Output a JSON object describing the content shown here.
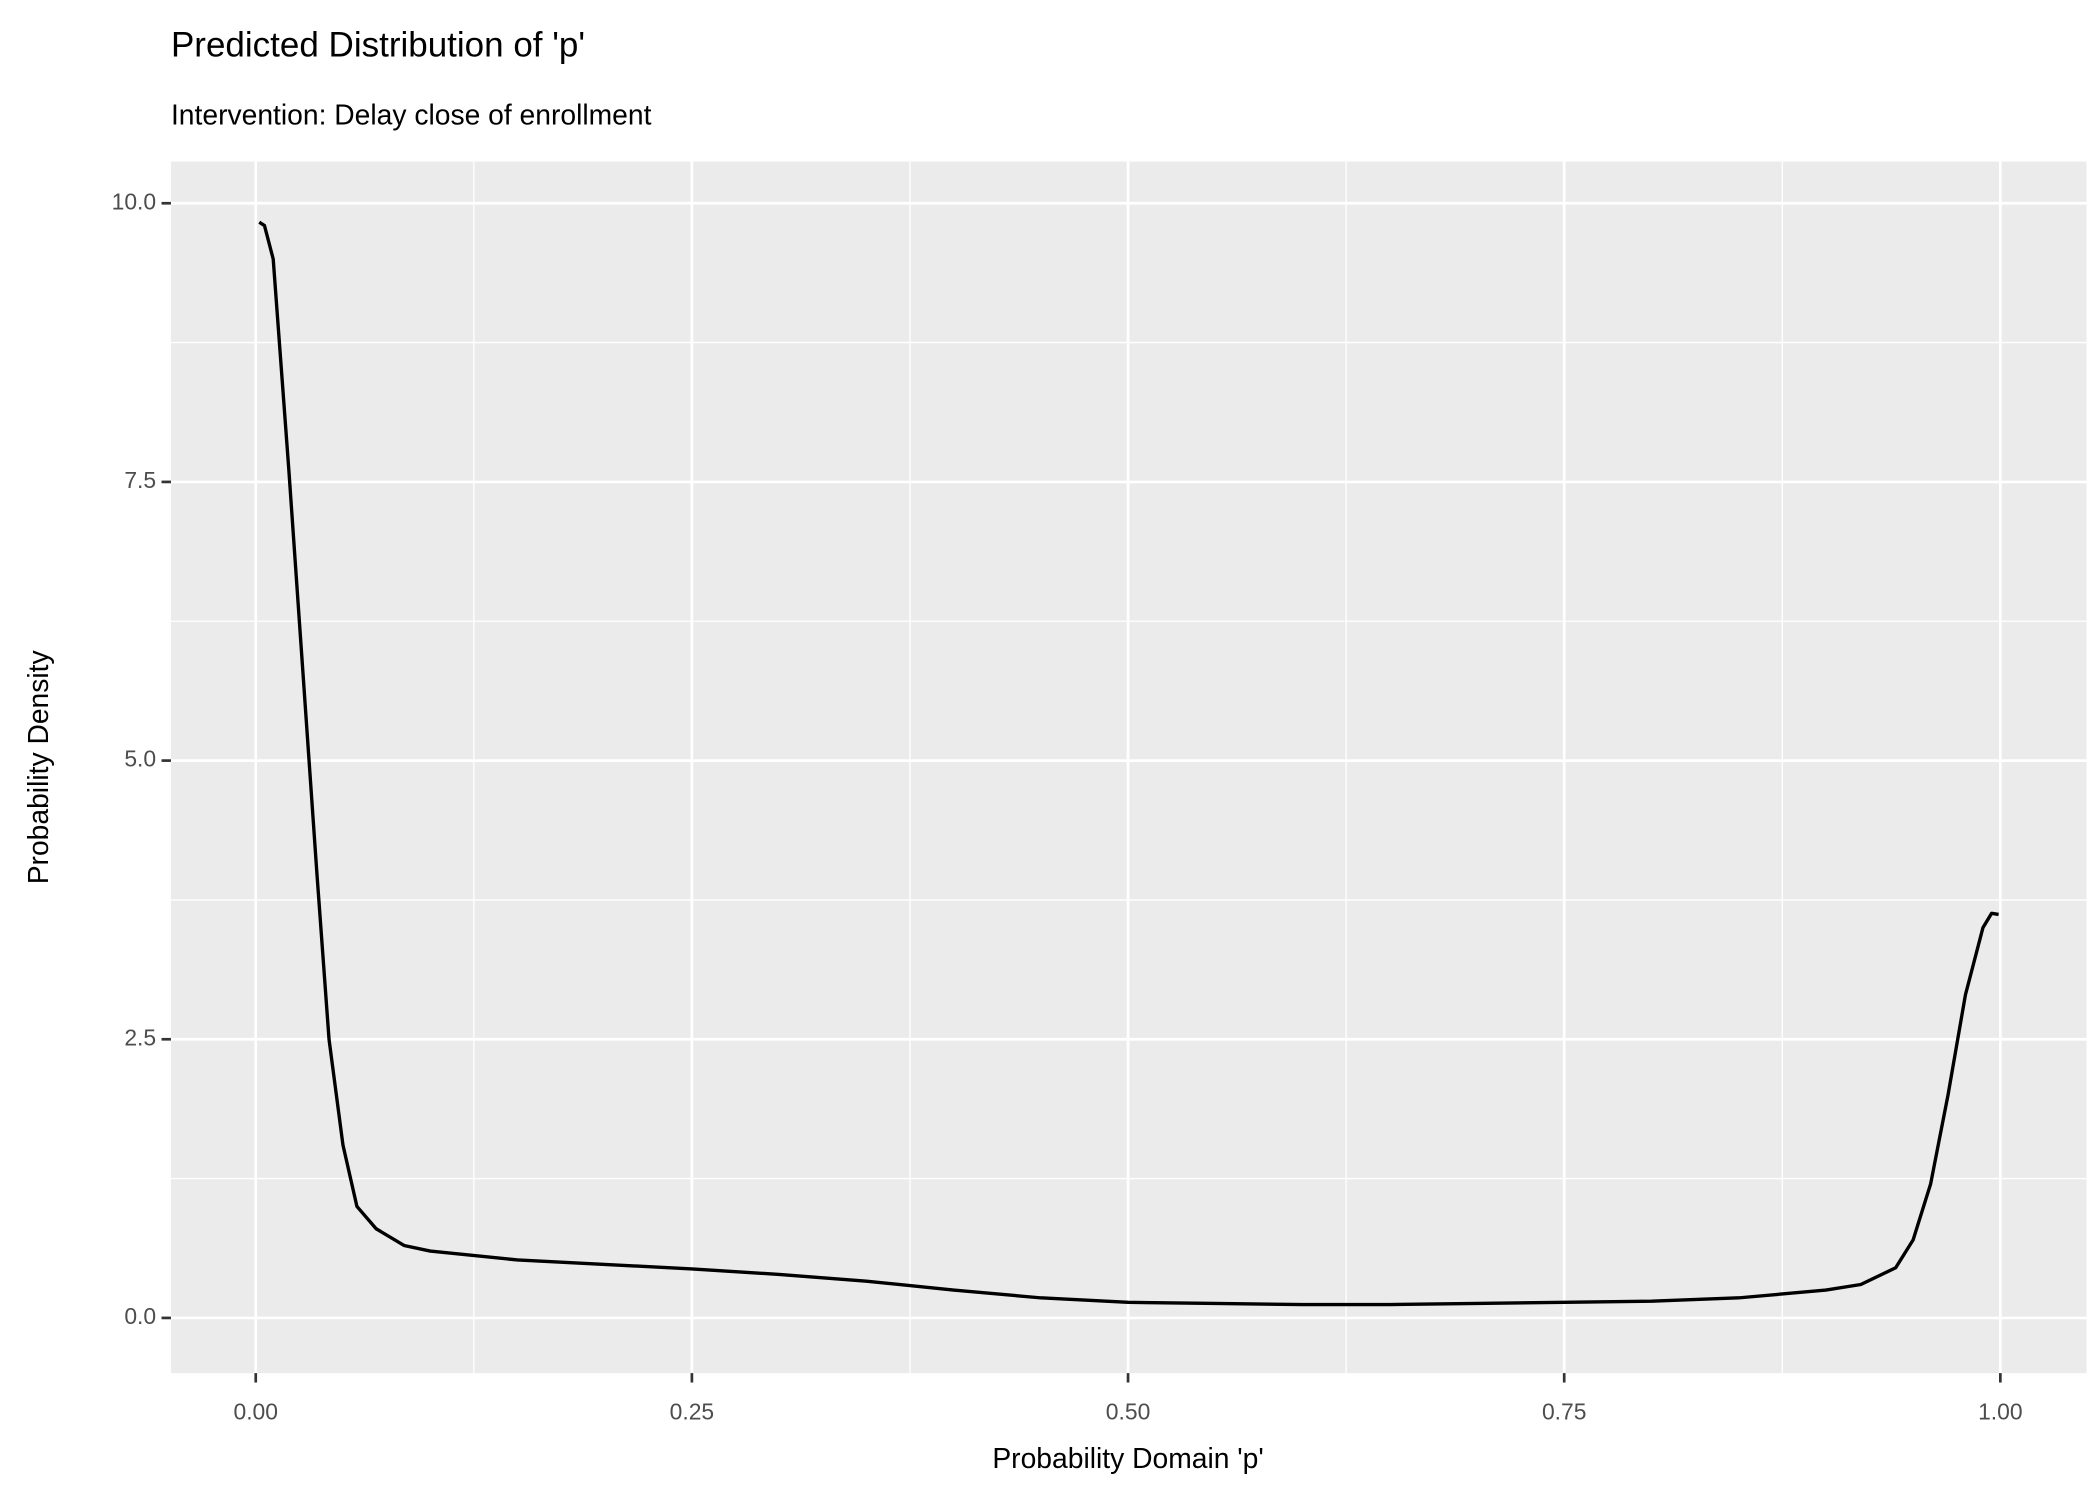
{
  "chart_data": {
    "type": "line",
    "title": "Predicted Distribution of 'p'",
    "subtitle": "Intervention: Delay close of enrollment",
    "x_label": "Probability Domain 'p'",
    "y_label": "Probability Density",
    "x": [
      0.002,
      0.005,
      0.01,
      0.019,
      0.027,
      0.035,
      0.042,
      0.05,
      0.058,
      0.069,
      0.085,
      0.1,
      0.15,
      0.2,
      0.25,
      0.3,
      0.35,
      0.4,
      0.45,
      0.5,
      0.55,
      0.6,
      0.65,
      0.7,
      0.75,
      0.8,
      0.85,
      0.9,
      0.92,
      0.94,
      0.95,
      0.96,
      0.97,
      0.98,
      0.99,
      0.995,
      0.999
    ],
    "series": [
      {
        "name": "density",
        "color": "#000000",
        "values": [
          9.83,
          9.8,
          9.5,
          7.6,
          5.8,
          4.0,
          2.5,
          1.55,
          1.0,
          0.8,
          0.65,
          0.6,
          0.52,
          0.48,
          0.44,
          0.39,
          0.33,
          0.25,
          0.18,
          0.14,
          0.13,
          0.12,
          0.12,
          0.13,
          0.14,
          0.15,
          0.18,
          0.25,
          0.3,
          0.45,
          0.7,
          1.2,
          2.0,
          2.9,
          3.5,
          3.63,
          3.62
        ]
      }
    ],
    "xlim": [
      -0.0486,
      1.0494
    ],
    "ylim": [
      -0.495,
      10.374
    ],
    "xticks": [
      {
        "value": 0,
        "label": "0.00"
      },
      0.25,
      {
        "value": 0.5,
        "label": "0.50"
      },
      0.75,
      {
        "value": 1,
        "label": "1.00"
      }
    ],
    "yticks": [
      {
        "value": 0,
        "label": "0.0"
      },
      2.5,
      {
        "value": 5,
        "label": "5.0"
      },
      7.5,
      {
        "value": 10,
        "label": "10.0"
      }
    ],
    "grid": true
  }
}
